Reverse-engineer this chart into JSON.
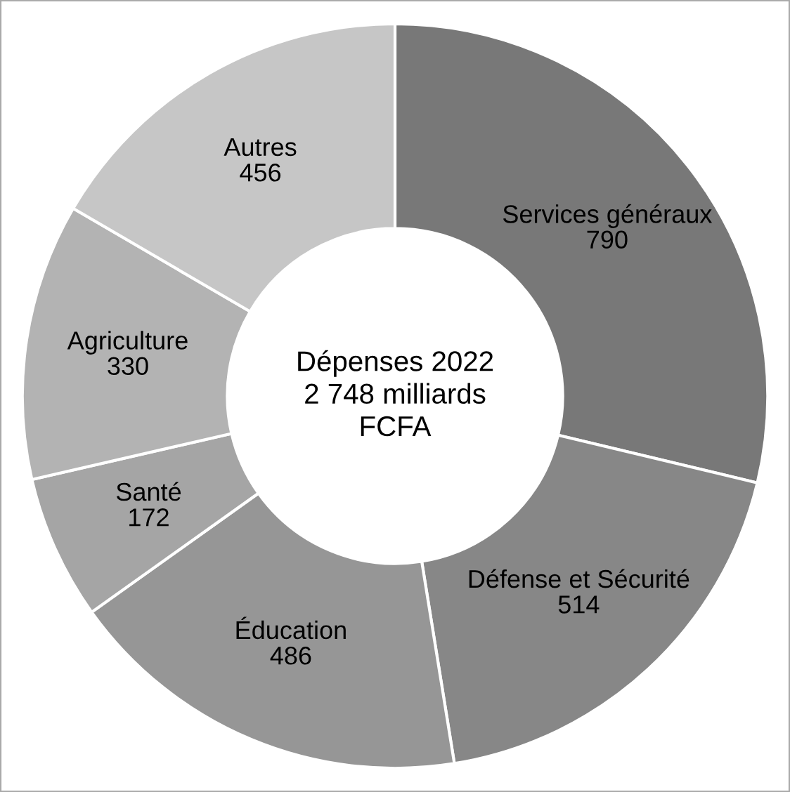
{
  "chart_data": {
    "type": "donut",
    "title": "Dépenses 2022\n2 748 milliards\nFCFA",
    "categories": [
      "Services généraux",
      "Défense et Sécurité",
      "Éducation",
      "Santé",
      "Agriculture",
      "Autres"
    ],
    "values": [
      790,
      514,
      486,
      172,
      330,
      456
    ],
    "colors": [
      "#787878",
      "#878787",
      "#969696",
      "#a5a5a5",
      "#b3b3b3",
      "#c6c6c6"
    ],
    "data_labels": true,
    "legend": false
  }
}
